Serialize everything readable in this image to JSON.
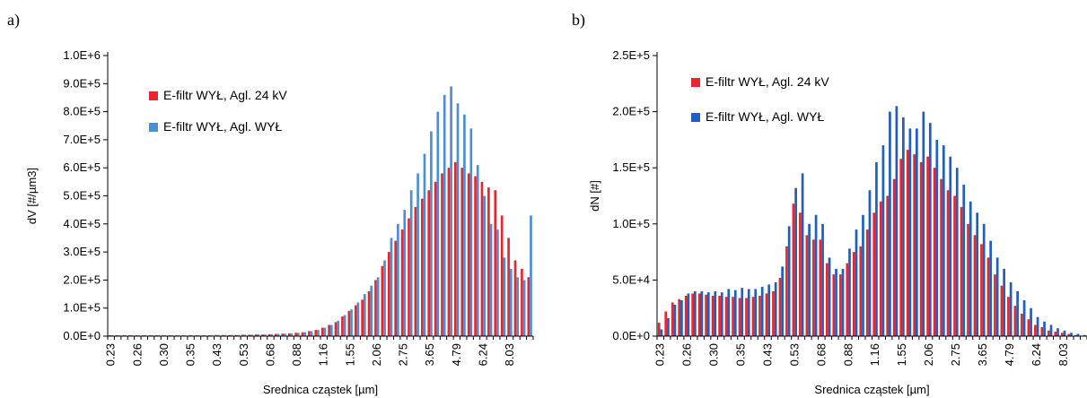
{
  "chart_data": [
    {
      "panel_label": "a)",
      "type": "bar",
      "xlabel": "Srednica cząstek [µm]",
      "ylabel": "dV [#/µm3]",
      "ylim": [
        0,
        1000000
      ],
      "y_ticks": [
        "0.0E+0",
        "1.0E+5",
        "2.0E+5",
        "3.0E+5",
        "4.0E+5",
        "5.0E+5",
        "6.0E+5",
        "7.0E+5",
        "8.0E+5",
        "9.0E+5",
        "1.0E+6"
      ],
      "x_tick_labels": [
        "0.23",
        "0.26",
        "0.30",
        "0.35",
        "0.43",
        "0.53",
        "0.68",
        "0.88",
        "1.16",
        "1.55",
        "2.06",
        "2.75",
        "3.65",
        "4.79",
        "6.24",
        "8.03"
      ],
      "legend_position": "top-left",
      "colors": {
        "series_red": "#e8262d",
        "series_blue": "#4a8fd6"
      },
      "categories_count": 64,
      "series": [
        {
          "name": "E-filtr WYŁ, Agl. 24 kV",
          "values": [
            3000,
            3000,
            3000,
            3000,
            3000,
            3000,
            3000,
            3000,
            3000,
            3000,
            3000,
            3000,
            3000,
            3000,
            3000,
            3000,
            4000,
            4000,
            4000,
            4000,
            5000,
            5000,
            6000,
            6000,
            7000,
            8000,
            9000,
            10000,
            12000,
            14000,
            18000,
            22000,
            30000,
            40000,
            50000,
            70000,
            90000,
            110000,
            130000,
            160000,
            200000,
            250000,
            300000,
            340000,
            380000,
            420000,
            460000,
            490000,
            520000,
            550000,
            580000,
            600000,
            620000,
            600000,
            580000,
            570000,
            550000,
            530000,
            520000,
            430000,
            350000,
            270000,
            240000,
            210000
          ]
        },
        {
          "name": "E-filtr WYŁ, Agl. WYŁ",
          "values": [
            3000,
            3000,
            3000,
            3000,
            3000,
            3000,
            3000,
            3000,
            3000,
            3000,
            3000,
            3000,
            3000,
            3000,
            3000,
            3000,
            4000,
            4000,
            4000,
            4000,
            5000,
            5000,
            6000,
            6000,
            7000,
            8000,
            9000,
            10000,
            12000,
            14000,
            18000,
            22000,
            30000,
            40000,
            55000,
            75000,
            95000,
            120000,
            150000,
            180000,
            210000,
            270000,
            350000,
            400000,
            450000,
            520000,
            580000,
            650000,
            730000,
            800000,
            860000,
            890000,
            830000,
            790000,
            740000,
            610000,
            500000,
            400000,
            380000,
            280000,
            240000,
            210000,
            200000,
            430000
          ]
        }
      ]
    },
    {
      "panel_label": "b)",
      "type": "bar",
      "xlabel": "Srednica cząstek [µm]",
      "ylabel": "dN [#]",
      "ylim": [
        0,
        250000
      ],
      "y_ticks": [
        "0.0E+0",
        "5.0E+4",
        "1.0E+5",
        "1.5E+5",
        "2.0E+5",
        "2.5E+5"
      ],
      "x_tick_labels": [
        "0.23",
        "0.26",
        "0.30",
        "0.35",
        "0.43",
        "0.53",
        "0.68",
        "0.88",
        "1.16",
        "1.55",
        "2.06",
        "2.75",
        "3.65",
        "4.79",
        "6.24",
        "8.03"
      ],
      "legend_position": "top-left",
      "colors": {
        "series_red": "#e8262d",
        "series_blue": "#1f5fbf"
      },
      "categories_count": 64,
      "series": [
        {
          "name": "E-filtr WYŁ, Agl. 24 kV",
          "values": [
            12000,
            22000,
            30000,
            33000,
            36000,
            38000,
            38000,
            37000,
            36000,
            36000,
            35000,
            35000,
            34000,
            34000,
            35000,
            36000,
            38000,
            40000,
            52000,
            80000,
            118000,
            110000,
            90000,
            86000,
            86000,
            65000,
            55000,
            55000,
            65000,
            75000,
            80000,
            95000,
            110000,
            120000,
            125000,
            140000,
            158000,
            166000,
            162000,
            155000,
            160000,
            150000,
            140000,
            130000,
            125000,
            115000,
            100000,
            90000,
            82000,
            70000,
            55000,
            45000,
            35000,
            27000,
            20000,
            15000,
            10000,
            8000,
            5000,
            4000,
            3000,
            2000,
            1000,
            500
          ]
        },
        {
          "name": "E-filtr WYŁ, Agl. WYŁ",
          "values": [
            6000,
            16000,
            28000,
            32000,
            38000,
            40000,
            40000,
            39000,
            40000,
            39000,
            42000,
            41000,
            43000,
            42000,
            42000,
            44000,
            46000,
            48000,
            62000,
            98000,
            132000,
            145000,
            100000,
            108000,
            100000,
            70000,
            60000,
            60000,
            78000,
            95000,
            108000,
            130000,
            155000,
            170000,
            200000,
            205000,
            195000,
            185000,
            185000,
            200000,
            190000,
            175000,
            170000,
            160000,
            150000,
            135000,
            120000,
            110000,
            100000,
            85000,
            70000,
            60000,
            48000,
            40000,
            32000,
            25000,
            17000,
            13000,
            10000,
            7000,
            5000,
            3000,
            2000,
            1000
          ]
        }
      ]
    }
  ]
}
